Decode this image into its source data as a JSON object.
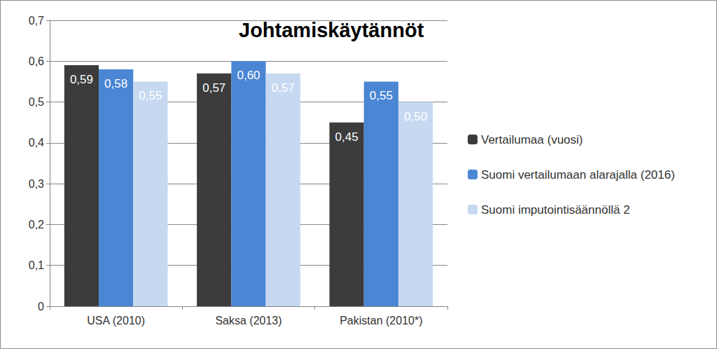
{
  "chart_data": {
    "type": "bar",
    "title": "Johtamiskäytännöt",
    "categories": [
      "USA (2010)",
      "Saksa (2013)",
      "Pakistan (2010*)"
    ],
    "series": [
      {
        "name": "Vertailumaa (vuosi)",
        "color": "#3c3c3c",
        "values": [
          0.59,
          0.57,
          0.45
        ],
        "value_labels": [
          "0,59",
          "0,57",
          "0,45"
        ]
      },
      {
        "name": "Suomi vertailumaan alarajalla (2016)",
        "color": "#4a86d4",
        "values": [
          0.58,
          0.6,
          0.55
        ],
        "value_labels": [
          "0,58",
          "0,60",
          "0,55"
        ]
      },
      {
        "name": "Suomi imputointisäännöllä 2",
        "color": "#c6d9f1",
        "values": [
          0.55,
          0.57,
          0.5
        ],
        "value_labels": [
          "0,55",
          "0,57",
          "0,50"
        ]
      }
    ],
    "ylim": [
      0,
      0.7
    ],
    "yticks": [
      0,
      {
        "value": 0.1,
        "label": "0,1"
      },
      {
        "value": 0.2,
        "label": "0,2"
      },
      {
        "value": 0.3,
        "label": "0,3"
      },
      {
        "value": 0.4,
        "label": "0,4"
      },
      {
        "value": 0.5,
        "label": "0,5"
      },
      {
        "value": 0.6,
        "label": "0,6"
      },
      {
        "value": 0.7,
        "label": "0,7"
      }
    ],
    "grid": true,
    "legend": "right",
    "data_labels": true
  }
}
